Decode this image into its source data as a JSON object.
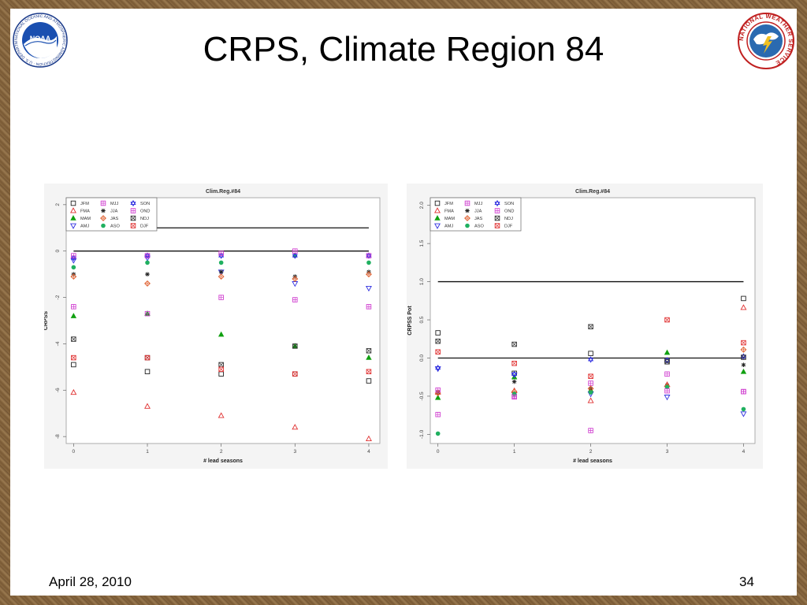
{
  "slide": {
    "title": "CRPS, Climate Region 84",
    "date": "April 28, 2010",
    "page_number": "34"
  },
  "logos": {
    "noaa": {
      "center_text": "NOAA",
      "ring_text": "NATIONAL OCEANIC AND ATMOSPHERIC ADMINISTRATION · U.S. DEPARTMENT OF COMMERCE"
    },
    "nws": {
      "ring_text": "NATIONAL WEATHER SERVICE"
    }
  },
  "colors": {
    "JFM": "#222222",
    "FMA": "#e03030",
    "MAM": "#10a010",
    "AMJ": "#3030e0",
    "MJJ": "#d040d0",
    "JJA": "#222222",
    "JAS": "#e06030",
    "ASO": "#20b060",
    "SON": "#3030e0",
    "OND": "#d040d0",
    "NDJ": "#333333",
    "DJF": "#e03030"
  },
  "chart_data": [
    {
      "type": "scatter",
      "title": "Clim.Reg.#84",
      "xlabel": "# lead seasons",
      "ylabel": "CRPSS",
      "x_ticks": [
        "0",
        "1",
        "2",
        "3",
        "4"
      ],
      "y_ticks": [
        "2",
        "0",
        "-2",
        "-4",
        "-6",
        "-8"
      ],
      "xlim": [
        -0.1,
        4.15
      ],
      "ylim": [
        -8.3,
        2.3
      ],
      "grid": false,
      "legend_position": "top-left",
      "reference_lines": [
        1,
        0
      ],
      "series": [
        {
          "name": "JFM",
          "marker": "square-open",
          "x": [
            0,
            1,
            2,
            3,
            4
          ],
          "y": [
            -4.9,
            -5.2,
            -5.3,
            -5.3,
            -5.6
          ]
        },
        {
          "name": "FMA",
          "marker": "triangle-up-open",
          "x": [
            0,
            1,
            2,
            3,
            4
          ],
          "y": [
            -6.1,
            -6.7,
            -7.1,
            -7.6,
            -8.1
          ]
        },
        {
          "name": "MAM",
          "marker": "triangle-up-filled",
          "x": [
            0,
            1,
            2,
            3,
            4
          ],
          "y": [
            -2.8,
            -2.7,
            -3.6,
            -4.1,
            -4.6
          ]
        },
        {
          "name": "AMJ",
          "marker": "triangle-down-open",
          "x": [
            0,
            1,
            2,
            3,
            4
          ],
          "y": [
            -0.4,
            -0.3,
            -0.9,
            -1.4,
            -1.6
          ]
        },
        {
          "name": "MJJ",
          "marker": "square-cross",
          "x": [
            0,
            1,
            2,
            3,
            4
          ],
          "y": [
            -2.4,
            -2.7,
            -2.0,
            -2.1,
            -2.4
          ]
        },
        {
          "name": "JJA",
          "marker": "asterisk",
          "x": [
            0,
            1,
            2,
            3,
            4
          ],
          "y": [
            -1.0,
            -1.0,
            -0.9,
            -1.1,
            -0.9
          ]
        },
        {
          "name": "JAS",
          "marker": "diamond-plus",
          "x": [
            0,
            1,
            2,
            3,
            4
          ],
          "y": [
            -1.1,
            -1.4,
            -1.1,
            -1.2,
            -1.0
          ]
        },
        {
          "name": "ASO",
          "marker": "circle-filled",
          "x": [
            0,
            1,
            2,
            3,
            4
          ],
          "y": [
            -0.7,
            -0.5,
            -0.5,
            -0.2,
            -0.5
          ]
        },
        {
          "name": "SON",
          "marker": "star-of-david",
          "x": [
            0,
            1,
            2,
            3,
            4
          ],
          "y": [
            -0.3,
            -0.2,
            -0.2,
            -0.2,
            -0.2
          ]
        },
        {
          "name": "OND",
          "marker": "square-cross",
          "x": [
            0,
            1,
            2,
            3,
            4
          ],
          "y": [
            -0.2,
            -0.2,
            -0.1,
            0,
            -0.2
          ]
        },
        {
          "name": "NDJ",
          "marker": "square-x",
          "x": [
            0,
            1,
            2,
            3,
            4
          ],
          "y": [
            -3.8,
            -4.6,
            -4.9,
            -4.1,
            -4.3
          ]
        },
        {
          "name": "DJF",
          "marker": "square-x-red",
          "x": [
            0,
            1,
            2,
            3,
            4
          ],
          "y": [
            -4.6,
            -4.6,
            -5.1,
            -5.3,
            -5.2
          ]
        }
      ]
    },
    {
      "type": "scatter",
      "title": "Clim.Reg.#84",
      "xlabel": "# lead seasons",
      "ylabel": "CRPSS Pot",
      "x_ticks": [
        "0",
        "1",
        "2",
        "3",
        "4"
      ],
      "y_ticks": [
        "2.0",
        "1.5",
        "1.0",
        "0.5",
        "0.0",
        "-0.5",
        "-1.0"
      ],
      "xlim": [
        -0.1,
        4.15
      ],
      "ylim": [
        -1.12,
        2.1
      ],
      "grid": false,
      "legend_position": "top-left",
      "reference_lines": [
        1,
        0
      ],
      "series": [
        {
          "name": "JFM",
          "marker": "square-open",
          "x": [
            0,
            1,
            2,
            3,
            4
          ],
          "y": [
            0.33,
            -0.2,
            0.06,
            -0.03,
            0.78
          ]
        },
        {
          "name": "FMA",
          "marker": "triangle-up-open",
          "x": [
            0,
            1,
            2,
            3,
            4
          ],
          "y": [
            -0.45,
            -0.43,
            -0.56,
            -0.35,
            0.66
          ]
        },
        {
          "name": "MAM",
          "marker": "triangle-up-filled",
          "x": [
            0,
            1,
            2,
            3,
            4
          ],
          "y": [
            -0.52,
            -0.25,
            -0.42,
            0.07,
            -0.18
          ]
        },
        {
          "name": "AMJ",
          "marker": "triangle-down-open",
          "x": [
            0,
            1,
            2,
            3,
            4
          ],
          "y": [
            -0.14,
            -0.22,
            -0.47,
            -0.51,
            -0.73
          ]
        },
        {
          "name": "MJJ",
          "marker": "square-cross",
          "x": [
            0,
            1,
            2,
            3,
            4
          ],
          "y": [
            -0.74,
            -0.5,
            -0.33,
            -0.21,
            -0.44
          ]
        },
        {
          "name": "JJA",
          "marker": "asterisk",
          "x": [
            0,
            1,
            2,
            3,
            4
          ],
          "y": [
            -0.45,
            -0.31,
            -0.4,
            -0.36,
            -0.09
          ]
        },
        {
          "name": "JAS",
          "marker": "diamond-plus",
          "x": [
            0,
            1,
            2,
            3,
            4
          ],
          "y": [
            -0.46,
            -0.44,
            -0.4,
            -0.37,
            0.11
          ]
        },
        {
          "name": "ASO",
          "marker": "circle-filled",
          "x": [
            0,
            1,
            2,
            3,
            4
          ],
          "y": [
            -0.99,
            -0.47,
            -0.45,
            -0.38,
            -0.67
          ]
        },
        {
          "name": "SON",
          "marker": "star-of-david",
          "x": [
            0,
            1,
            2,
            3,
            4
          ],
          "y": [
            -0.13,
            -0.21,
            -0.02,
            -0.03,
            0.02
          ]
        },
        {
          "name": "OND",
          "marker": "square-cross",
          "x": [
            0,
            1,
            2,
            3,
            4
          ],
          "y": [
            -0.42,
            -0.51,
            -0.95,
            -0.43,
            -0.44
          ]
        },
        {
          "name": "NDJ",
          "marker": "square-x",
          "x": [
            0,
            1,
            2,
            3,
            4
          ],
          "y": [
            0.22,
            0.18,
            0.41,
            -0.05,
            0.01
          ]
        },
        {
          "name": "DJF",
          "marker": "square-x-red",
          "x": [
            0,
            1,
            2,
            3,
            4
          ],
          "y": [
            0.08,
            -0.07,
            -0.24,
            0.5,
            0.2
          ]
        }
      ]
    }
  ]
}
